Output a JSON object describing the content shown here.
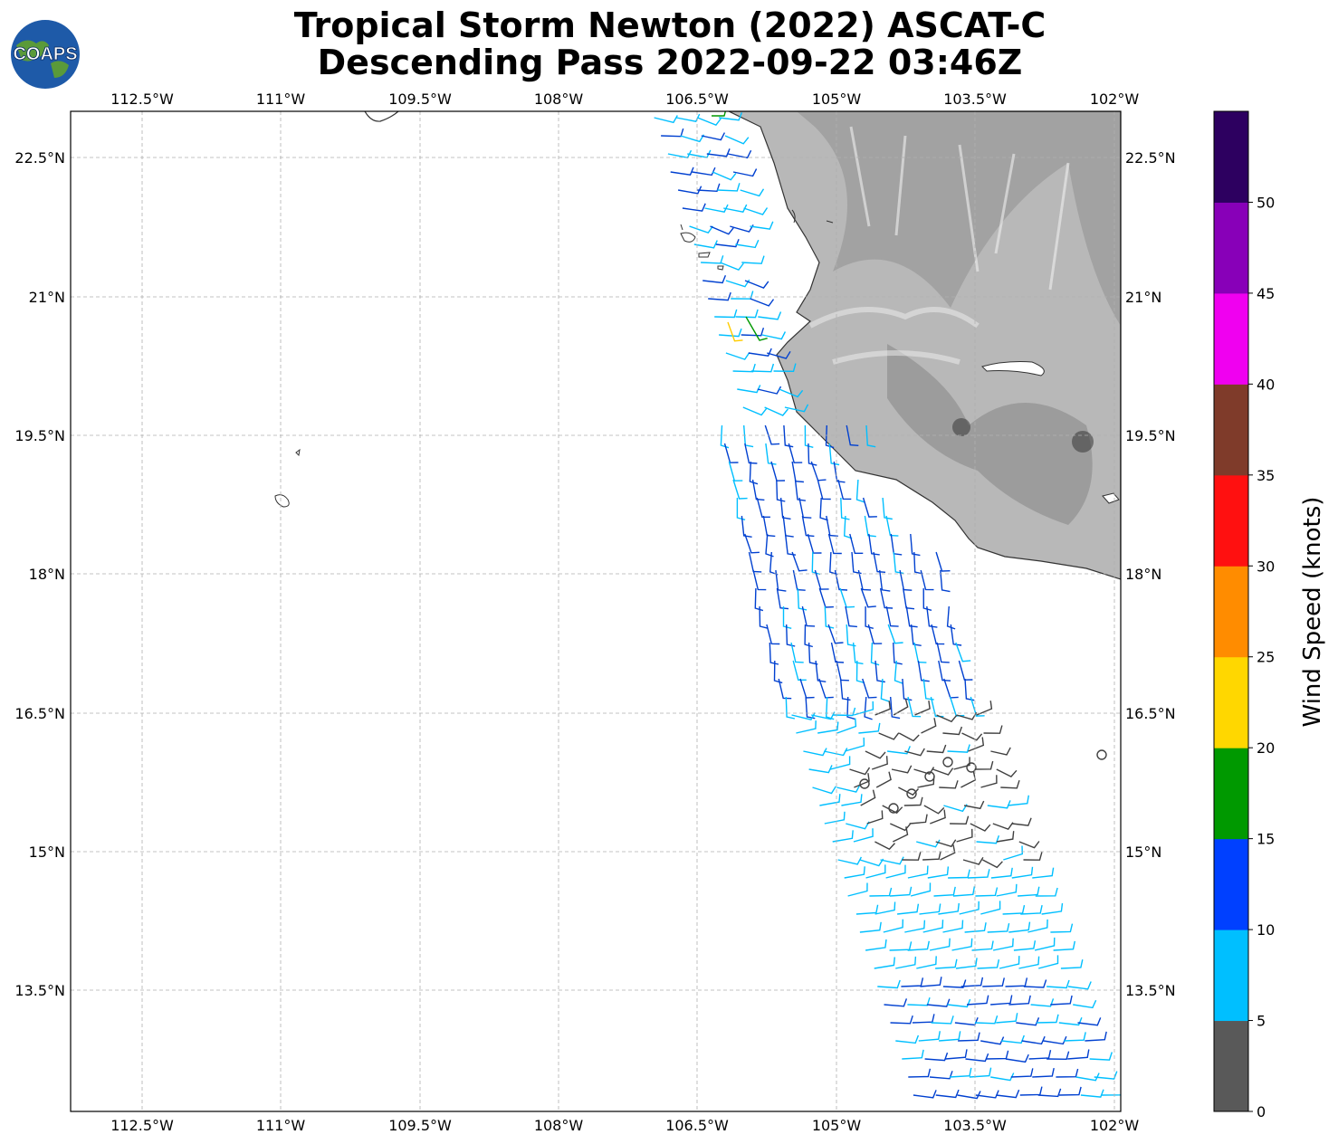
{
  "title_line1": "Tropical Storm Newton (2022) ASCAT-C",
  "title_line2": "Descending Pass 2022-09-22 03:46Z",
  "logo_text": "COAPS",
  "map": {
    "lon_labels": [
      "112.5°W",
      "111°W",
      "109.5°W",
      "108°W",
      "106.5°W",
      "105°W",
      "103.5°W",
      "102°W"
    ],
    "lat_labels": [
      "22.5°N",
      "21°N",
      "19.5°N",
      "18°N",
      "16.5°N",
      "15°N",
      "13.5°N"
    ]
  },
  "colorbar": {
    "label": "Wind Speed (knots)",
    "ticks": [
      "0",
      "5",
      "10",
      "15",
      "20",
      "25",
      "30",
      "35",
      "40",
      "45",
      "50"
    ],
    "colors": [
      "#595959",
      "#00bfff",
      "#0040ff",
      "#009900",
      "#ffd700",
      "#ff8c00",
      "#ff1010",
      "#7f3b2a",
      "#f000f0",
      "#8800b8",
      "#2d0060"
    ]
  },
  "barb_colors": {
    "calm": "#404040",
    "light": "#00bfff",
    "moderate": "#0040d0",
    "fresh": "#009900",
    "strong": "#ffcc00"
  }
}
